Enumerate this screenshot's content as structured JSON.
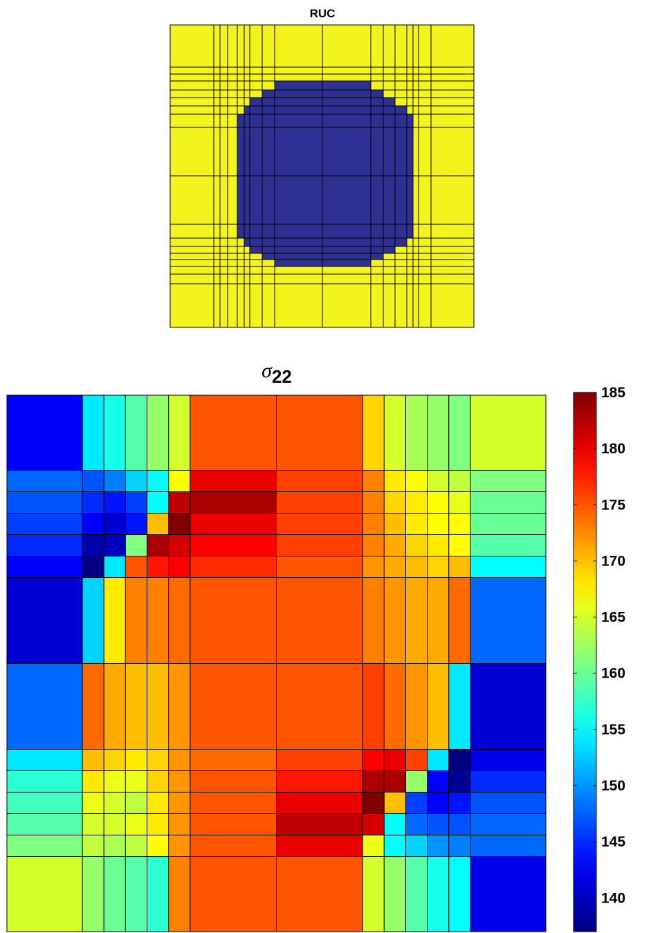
{
  "chart_data": [
    {
      "type": "heatmap",
      "title": "RUC",
      "xlabel": "",
      "ylabel": "",
      "x_edges": [
        0,
        0.14,
        0.15,
        0.175,
        0.2,
        0.225,
        0.25,
        0.275,
        0.35,
        0.5,
        0.65,
        0.725,
        0.75,
        0.775,
        0.8,
        0.825,
        0.85,
        0.86,
        1
      ],
      "y_edges": [
        0,
        0.14,
        0.15,
        0.175,
        0.2,
        0.225,
        0.25,
        0.275,
        0.35,
        0.5,
        0.65,
        0.725,
        0.75,
        0.775,
        0.8,
        0.825,
        0.85,
        0.86,
        1
      ],
      "columns": [
        0,
        0.14,
        0.16,
        0.18,
        0.2,
        0.22,
        0.24,
        0.26,
        0.32,
        0.5,
        0.68,
        0.74,
        0.76,
        0.78,
        0.8,
        0.82,
        0.84,
        0.86,
        1
      ],
      "rows": [
        0,
        0.14,
        0.16,
        0.18,
        0.2,
        0.22,
        0.24,
        0.26,
        0.32,
        0.5,
        0.68,
        0.74,
        0.76,
        0.78,
        0.8,
        0.82,
        0.84,
        0.86,
        1
      ],
      "materials": {
        "fiber": "#2e3192",
        "matrix": "#f3f31e"
      },
      "fiber_cells_by_row": [
        [
          8,
          9
        ],
        [
          7,
          10
        ],
        [
          6,
          11
        ],
        [
          5,
          12
        ],
        [
          4,
          13
        ],
        [
          4,
          13
        ],
        [
          4,
          13
        ],
        [
          4,
          13
        ],
        [
          5,
          12
        ],
        [
          6,
          11
        ],
        [
          7,
          10
        ],
        [
          8,
          9
        ]
      ],
      "fiber_row_range": [
        3,
        14
      ],
      "grid": true
    },
    {
      "type": "heatmap",
      "title": "σ",
      "title_subscript": "22",
      "xlabel": "",
      "ylabel": "",
      "colormap": "jet",
      "clim": [
        137,
        185
      ],
      "colorbar_ticks": [
        "140",
        "145",
        "150",
        "155",
        "160",
        "165",
        "170",
        "175",
        "180",
        "185"
      ],
      "col_widths": [
        3.5,
        1,
        1,
        1,
        1,
        1,
        4,
        4,
        1,
        1,
        1,
        1,
        1,
        3.5
      ],
      "row_heights": [
        3.5,
        1,
        1,
        1,
        1,
        1,
        4,
        4,
        1,
        1,
        1,
        1,
        1,
        3.5
      ],
      "values": [
        [
          143,
          154,
          156,
          159,
          162,
          165,
          175,
          175,
          169,
          165,
          163,
          162,
          161,
          165
        ],
        [
          148,
          147,
          149,
          153,
          155,
          167,
          180,
          176,
          173,
          168,
          167,
          165,
          164,
          161
        ],
        [
          147,
          145,
          144,
          146,
          155,
          182,
          183,
          176,
          173,
          169,
          168,
          167,
          166,
          160
        ],
        [
          146,
          143,
          141,
          144,
          170,
          185,
          180,
          176,
          173,
          170,
          168,
          167,
          167,
          160
        ],
        [
          145,
          139,
          140,
          161,
          183,
          181,
          179,
          176,
          173,
          171,
          169,
          168,
          167,
          159
        ],
        [
          143,
          137,
          154,
          175,
          178,
          179,
          177,
          175,
          172,
          171,
          170,
          169,
          170,
          155
        ],
        [
          141,
          153,
          168,
          173,
          173,
          174,
          175,
          175,
          173,
          172,
          171,
          171,
          174,
          148
        ],
        [
          148,
          174,
          171,
          170,
          170,
          172,
          175,
          175,
          176,
          174,
          172,
          170,
          154,
          141
        ],
        [
          154,
          170,
          169,
          168,
          169,
          172,
          174,
          176,
          179,
          180,
          176,
          154,
          137,
          142
        ],
        [
          157,
          168,
          166,
          166,
          169,
          172,
          175,
          178,
          183,
          183,
          162,
          143,
          138,
          145
        ],
        [
          158,
          166,
          165,
          164,
          168,
          172,
          175,
          180,
          185,
          170,
          146,
          143,
          144,
          147
        ],
        [
          159,
          165,
          165,
          166,
          168,
          172,
          175,
          182,
          181,
          155,
          148,
          147,
          147,
          148
        ],
        [
          161,
          164,
          163,
          164,
          167,
          172,
          175,
          180,
          166,
          155,
          153,
          150,
          149,
          148
        ],
        [
          165,
          162,
          160,
          159,
          157,
          173,
          175,
          175,
          165,
          162,
          159,
          156,
          155,
          142
        ]
      ],
      "grid": true
    }
  ]
}
